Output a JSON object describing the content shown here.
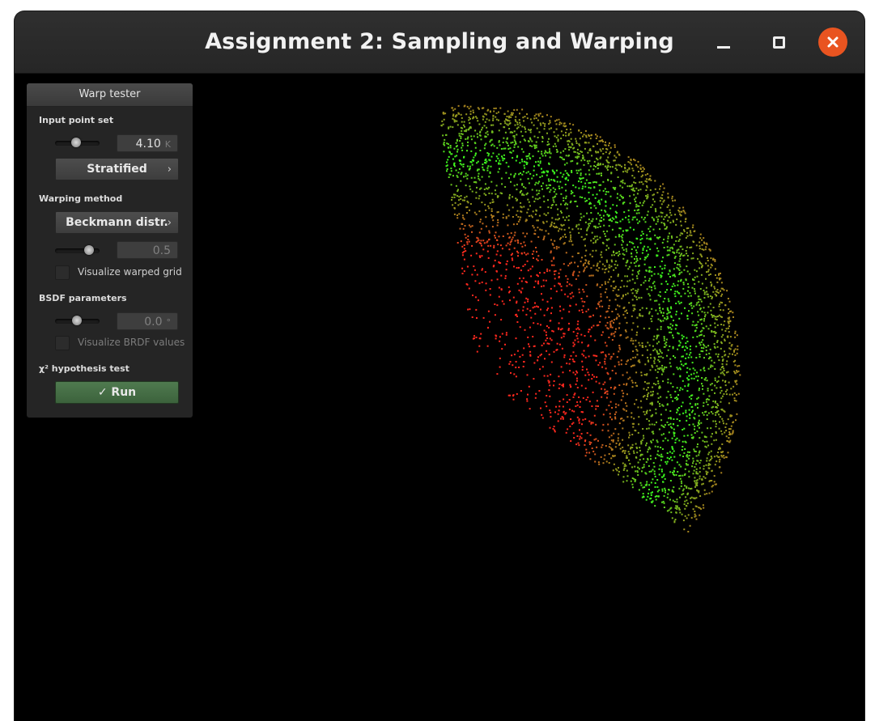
{
  "window": {
    "title": "Assignment 2: Sampling and Warping"
  },
  "titlebar_buttons": [
    "minimize-icon",
    "maximize-icon",
    "close-icon"
  ],
  "colors": {
    "close_button": "#e95420",
    "point_low": "#ff2020",
    "point_high": "#30ff30",
    "run_button": "#4a714a"
  },
  "panel": {
    "title": "Warp tester",
    "input_point_set": {
      "label": "Input point set",
      "count_value": "4.10",
      "count_unit": "K",
      "slider_level": 0.45,
      "sampler": "Stratified"
    },
    "warping_method": {
      "label": "Warping method",
      "method": "Beckmann distr.",
      "param_value": "0.5",
      "slider_level": 0.7,
      "visualize_grid_label": "Visualize warped grid",
      "visualize_grid_checked": false
    },
    "bsdf": {
      "label": "BSDF parameters",
      "angle_value": "0.0",
      "angle_unit": "°",
      "slider_level": 0.5,
      "visualize_brdf_label": "Visualize BRDF values",
      "visualize_brdf_checked": false
    },
    "chi2": {
      "label": "χ² hypothesis test",
      "run_label": "✓ Run"
    }
  }
}
